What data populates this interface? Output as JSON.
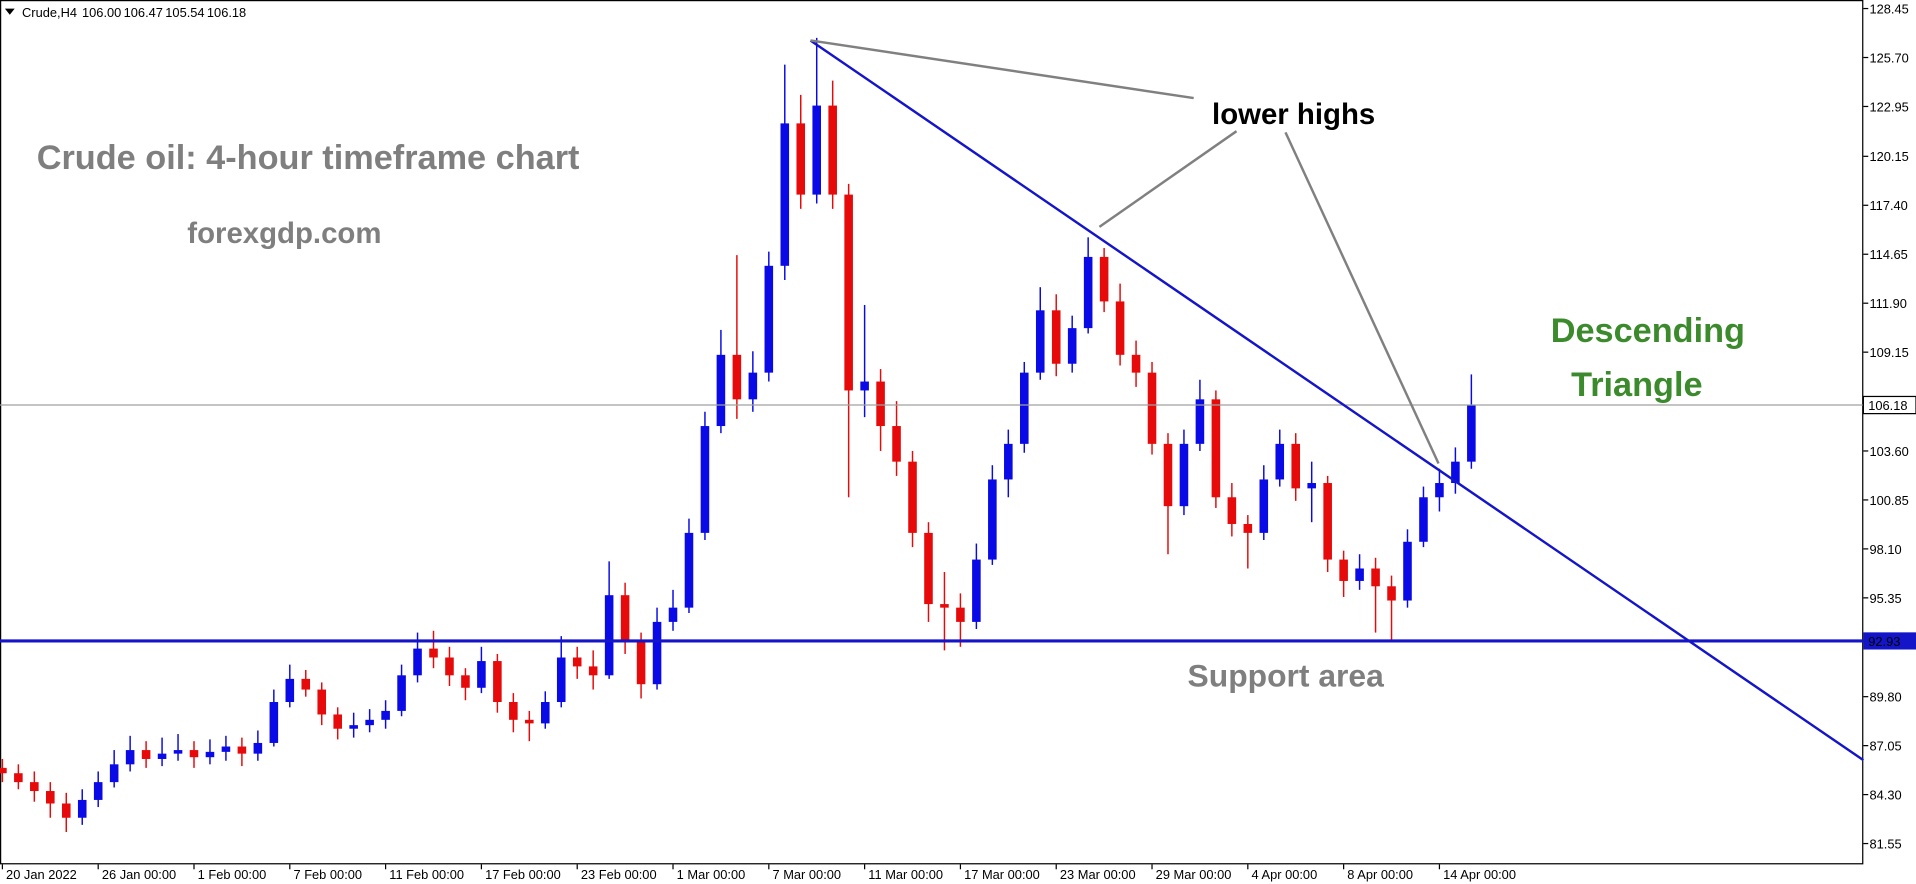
{
  "chart_data": {
    "type": "candlestick",
    "header": {
      "symbol": "Crude,H4",
      "ohlc": [
        "106.00",
        "106.47",
        "105.54",
        "106.18"
      ]
    },
    "title": "Crude oil: 4-hour timeframe chart",
    "subtitle": "forexgdp.com",
    "annotations": {
      "lower_highs": "lower highs",
      "pattern": [
        "Descending",
        "Triangle"
      ],
      "support": "Support area"
    },
    "up_color": "#0a0ae6",
    "down_color": "#e60a0a",
    "support_level": 92.93,
    "last_price": 106.18,
    "xlim": [
      -0.6,
      466.2
    ],
    "ylim": [
      80.38,
      128.93
    ],
    "xticks": [
      {
        "value": 0,
        "label": "20 Jan 2022"
      },
      {
        "value": 24,
        "label": "26 Jan 00:00"
      },
      {
        "value": 48,
        "label": "1 Feb 00:00"
      },
      {
        "value": 72,
        "label": "7 Feb 00:00"
      },
      {
        "value": 96,
        "label": "11 Feb 00:00"
      },
      {
        "value": 120,
        "label": "17 Feb 00:00"
      },
      {
        "value": 144,
        "label": "23 Feb 00:00"
      },
      {
        "value": 168,
        "label": "1 Mar 00:00"
      },
      {
        "value": 192,
        "label": "7 Mar 00:00"
      },
      {
        "value": 216,
        "label": "11 Mar 00:00"
      },
      {
        "value": 240,
        "label": "17 Mar 00:00"
      },
      {
        "value": 264,
        "label": "23 Mar 00:00"
      },
      {
        "value": 288,
        "label": "29 Mar 00:00"
      },
      {
        "value": 312,
        "label": "4 Apr 00:00"
      },
      {
        "value": 336,
        "label": "8 Apr 00:00"
      },
      {
        "value": 360,
        "label": "14 Apr 00:00"
      }
    ],
    "yticks": [
      128.45,
      {
        "value": 125.7,
        "label": "125.70"
      },
      122.95,
      120.15,
      {
        "value": 117.4,
        "label": "117.40"
      },
      114.65,
      {
        "value": 111.9,
        "label": "111.90"
      },
      109.15,
      {
        "value": 103.6,
        "label": "103.60"
      },
      100.85,
      {
        "value": 98.1,
        "label": "98.10"
      },
      95.35,
      {
        "value": 89.8,
        "label": "89.80"
      },
      87.05,
      {
        "value": 84.3,
        "label": "84.30"
      },
      81.55
    ],
    "x": [
      0,
      4,
      8,
      12,
      16,
      20,
      24,
      28,
      32,
      36,
      40,
      44,
      48,
      52,
      56,
      60,
      64,
      68,
      72,
      76,
      80,
      84,
      88,
      92,
      96,
      100,
      104,
      108,
      112,
      116,
      120,
      124,
      128,
      132,
      136,
      140,
      144,
      148,
      152,
      156,
      160,
      164,
      168,
      172,
      176,
      180,
      184,
      188,
      192,
      196,
      200,
      204,
      208,
      212,
      216,
      220,
      224,
      228,
      232,
      236,
      240,
      244,
      248,
      252,
      256,
      260,
      264,
      268,
      272,
      276,
      280,
      284,
      288,
      292,
      296,
      300,
      304,
      308,
      312,
      316,
      320,
      324,
      328,
      332,
      336,
      340,
      344,
      348,
      352,
      356,
      360,
      364,
      368
    ],
    "candles": [
      [
        85.8,
        86.3,
        85.0,
        85.5
      ],
      [
        85.5,
        86.0,
        84.6,
        85.0
      ],
      [
        85.0,
        85.6,
        83.9,
        84.5
      ],
      [
        84.5,
        85.0,
        83.0,
        83.8
      ],
      [
        83.8,
        84.4,
        82.2,
        83.0
      ],
      [
        83.0,
        84.6,
        82.6,
        84.0
      ],
      [
        84.0,
        85.6,
        83.6,
        85.0
      ],
      [
        85.0,
        86.8,
        84.7,
        86.0
      ],
      [
        86.0,
        87.6,
        85.6,
        86.8
      ],
      [
        86.8,
        87.3,
        85.8,
        86.3
      ],
      [
        86.3,
        87.5,
        85.9,
        86.6
      ],
      [
        86.6,
        87.7,
        86.2,
        86.8
      ],
      [
        86.8,
        87.3,
        85.8,
        86.4
      ],
      [
        86.4,
        87.4,
        86.0,
        86.7
      ],
      [
        86.7,
        87.6,
        86.2,
        87.0
      ],
      [
        87.0,
        87.5,
        85.9,
        86.6
      ],
      [
        86.6,
        87.9,
        86.2,
        87.2
      ],
      [
        87.2,
        90.2,
        87.0,
        89.5
      ],
      [
        89.5,
        91.6,
        89.2,
        90.8
      ],
      [
        90.8,
        91.3,
        89.8,
        90.2
      ],
      [
        90.2,
        90.6,
        88.2,
        88.8
      ],
      [
        88.8,
        89.2,
        87.4,
        88.0
      ],
      [
        88.0,
        88.9,
        87.5,
        88.2
      ],
      [
        88.2,
        89.1,
        87.8,
        88.5
      ],
      [
        88.5,
        89.6,
        88.0,
        89.0
      ],
      [
        89.0,
        91.6,
        88.7,
        91.0
      ],
      [
        91.0,
        93.4,
        90.6,
        92.5
      ],
      [
        92.5,
        93.5,
        91.4,
        92.0
      ],
      [
        92.0,
        92.6,
        90.4,
        91.0
      ],
      [
        91.0,
        91.4,
        89.6,
        90.3
      ],
      [
        90.3,
        92.6,
        90.0,
        91.8
      ],
      [
        91.8,
        92.2,
        88.9,
        89.5
      ],
      [
        89.5,
        90.0,
        87.8,
        88.5
      ],
      [
        88.5,
        89.0,
        87.3,
        88.3
      ],
      [
        88.3,
        90.1,
        88.0,
        89.5
      ],
      [
        89.5,
        93.2,
        89.2,
        92.0
      ],
      [
        92.0,
        92.6,
        90.8,
        91.5
      ],
      [
        91.5,
        92.4,
        90.2,
        91.0
      ],
      [
        91.0,
        97.4,
        90.8,
        95.5
      ],
      [
        95.5,
        96.2,
        92.2,
        93.0
      ],
      [
        93.0,
        93.4,
        89.7,
        90.5
      ],
      [
        90.5,
        94.8,
        90.2,
        94.0
      ],
      [
        94.0,
        95.8,
        93.5,
        94.8
      ],
      [
        94.8,
        99.8,
        94.5,
        99.0
      ],
      [
        99.0,
        105.8,
        98.6,
        105.0
      ],
      [
        105.0,
        110.4,
        104.6,
        109.0
      ],
      [
        109.0,
        114.6,
        105.4,
        106.5
      ],
      [
        106.5,
        109.2,
        105.8,
        108.0
      ],
      [
        108.0,
        114.8,
        107.5,
        114.0
      ],
      [
        114.0,
        125.3,
        113.2,
        122.0
      ],
      [
        122.0,
        123.6,
        117.2,
        118.0
      ],
      [
        118.0,
        126.8,
        117.5,
        123.0
      ],
      [
        123.0,
        124.4,
        117.2,
        118.0
      ],
      [
        118.0,
        118.6,
        101.0,
        107.0
      ],
      [
        107.0,
        111.8,
        105.5,
        107.5
      ],
      [
        107.5,
        108.2,
        103.6,
        105.0
      ],
      [
        105.0,
        106.4,
        102.2,
        103.0
      ],
      [
        103.0,
        103.6,
        98.2,
        99.0
      ],
      [
        99.0,
        99.6,
        94.0,
        95.0
      ],
      [
        95.0,
        96.8,
        92.4,
        94.8
      ],
      [
        94.8,
        95.6,
        92.6,
        94.0
      ],
      [
        94.0,
        98.4,
        93.6,
        97.5
      ],
      [
        97.5,
        102.8,
        97.2,
        102.0
      ],
      [
        102.0,
        104.8,
        101.0,
        104.0
      ],
      [
        104.0,
        108.6,
        103.5,
        108.0
      ],
      [
        108.0,
        112.8,
        107.6,
        111.5
      ],
      [
        111.5,
        112.4,
        107.8,
        108.5
      ],
      [
        108.5,
        111.2,
        108.0,
        110.5
      ],
      [
        110.5,
        115.6,
        110.2,
        114.5
      ],
      [
        114.5,
        115.0,
        111.4,
        112.0
      ],
      [
        112.0,
        113.0,
        108.4,
        109.0
      ],
      [
        109.0,
        109.8,
        107.2,
        108.0
      ],
      [
        108.0,
        108.6,
        103.4,
        104.0
      ],
      [
        104.0,
        104.6,
        97.8,
        100.5
      ],
      [
        100.5,
        104.8,
        100.0,
        104.0
      ],
      [
        104.0,
        107.6,
        103.6,
        106.5
      ],
      [
        106.5,
        107.0,
        100.4,
        101.0
      ],
      [
        101.0,
        101.8,
        98.8,
        99.5
      ],
      [
        99.5,
        100.0,
        97.0,
        99.0
      ],
      [
        99.0,
        102.8,
        98.6,
        102.0
      ],
      [
        102.0,
        104.8,
        101.6,
        104.0
      ],
      [
        104.0,
        104.6,
        100.8,
        101.5
      ],
      [
        101.5,
        103.0,
        99.6,
        101.8
      ],
      [
        101.8,
        102.2,
        96.8,
        97.5
      ],
      [
        97.5,
        98.0,
        95.4,
        96.3
      ],
      [
        96.3,
        97.8,
        95.8,
        97.0
      ],
      [
        97.0,
        97.6,
        93.4,
        96.0
      ],
      [
        96.0,
        96.6,
        93.0,
        95.2
      ],
      [
        95.2,
        99.2,
        94.8,
        98.5
      ],
      [
        98.5,
        101.6,
        98.2,
        101.0
      ],
      [
        101.0,
        102.6,
        100.2,
        101.8
      ],
      [
        101.8,
        103.8,
        101.2,
        103.0
      ],
      [
        103.0,
        107.9,
        102.6,
        106.18
      ]
    ]
  }
}
